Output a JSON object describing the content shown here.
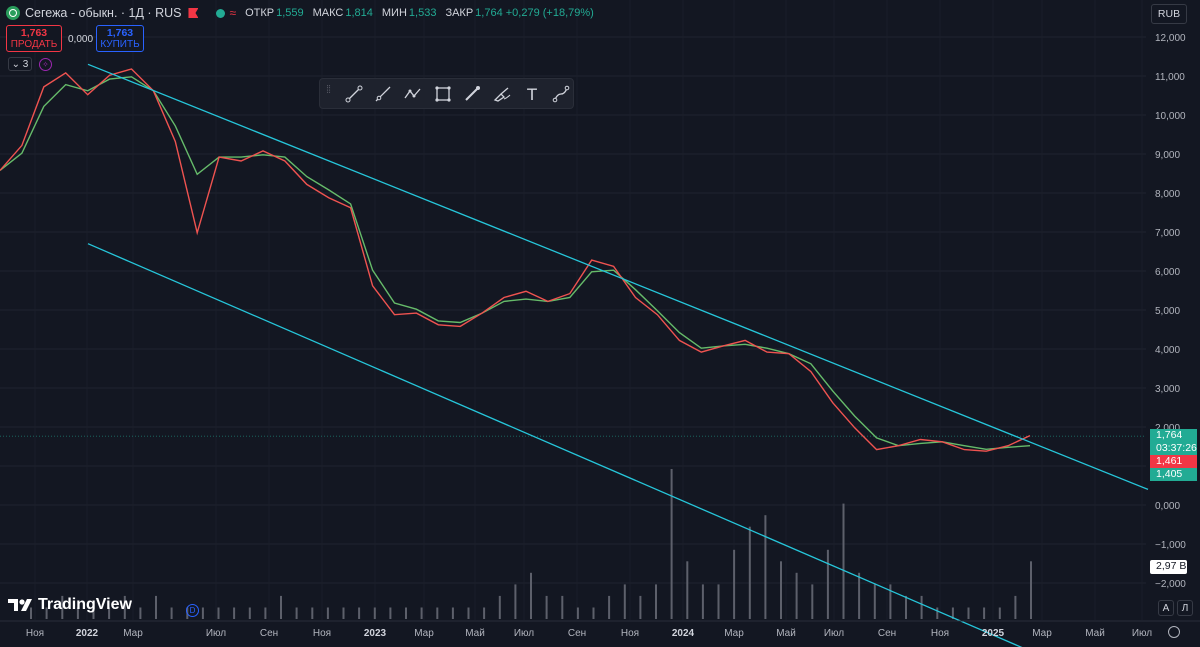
{
  "header": {
    "title": "Сегежа - обыкн. · 1Д · RUS",
    "ohlc": [
      {
        "label": "ОТКР",
        "value": "1,559"
      },
      {
        "label": "МАКС",
        "value": "1,814"
      },
      {
        "label": "МИН",
        "value": "1,533"
      },
      {
        "label": "ЗАКР",
        "value": "1,764 +0,279 (+18,79%)"
      }
    ],
    "wave_symbol": "≈"
  },
  "trade": {
    "sell_price": "1,763",
    "sell_label": "ПРОДАТЬ",
    "spread": "0,000",
    "buy_price": "1,763",
    "buy_label": "КУПИТЬ"
  },
  "indicators_toggle": "⌄ 3",
  "toolbar": {
    "tools": [
      "trend-line-icon",
      "ray-icon",
      "polyline-icon",
      "rectangle-icon",
      "brush-icon",
      "highlighter-icon",
      "text-icon",
      "path-icon"
    ],
    "text_tool_glyph": "T"
  },
  "brand": "TradingView",
  "currency": "RUB",
  "price_scale": {
    "labels": [
      "12,000",
      "11,000",
      "10,000",
      "9,000",
      "8,000",
      "7,000",
      "6,000",
      "5,000",
      "4,000",
      "3,000",
      "2,000",
      "1,000",
      "0,000",
      "−1,000",
      "−2,000"
    ],
    "values": [
      12,
      11,
      10,
      9,
      8,
      7,
      6,
      5,
      4,
      3,
      2,
      1,
      0,
      -1,
      -2
    ]
  },
  "time_axis": {
    "labels": [
      "Ноя",
      "2022",
      "Мар",
      "Июл",
      "Сен",
      "Ноя",
      "2023",
      "Мар",
      "Май",
      "Июл",
      "Сен",
      "Ноя",
      "2024",
      "Мар",
      "Май",
      "Июл",
      "Сен",
      "Ноя",
      "2025",
      "Мар",
      "Май",
      "Июл"
    ],
    "bold": [
      "2022",
      "2023",
      "2024",
      "2025"
    ]
  },
  "price_tags": {
    "last": "1,764",
    "countdown": "03:37:26",
    "red": "1,461",
    "green": "1,405",
    "volume": "2,97 B"
  },
  "axis_buttons": {
    "auto": "A",
    "log": "Л"
  },
  "markers": {
    "dividend": "D"
  },
  "chart_data": {
    "type": "line",
    "series": [
      {
        "values": [
          8.6,
          9.2,
          10.7,
          11.1,
          10.5,
          11.0,
          11.2,
          10.6,
          9.3,
          7.0,
          8.9,
          8.8,
          9.1,
          8.8,
          8.2,
          7.9,
          7.6,
          5.6,
          4.9,
          4.9,
          4.6,
          4.6,
          4.9,
          5.3,
          5.5,
          5.2,
          5.4,
          6.3,
          6.1,
          5.3,
          4.9,
          4.2,
          3.9,
          4.1,
          4.2,
          3.9,
          3.9,
          3.4,
          2.6,
          2.0,
          1.4,
          1.5,
          1.7,
          1.6,
          1.4,
          1.4,
          1.5,
          1.76
        ]
      },
      {
        "values": [
          8.6,
          9.0,
          10.2,
          10.8,
          10.6,
          10.9,
          11.0,
          10.6,
          9.7,
          8.5,
          8.9,
          8.9,
          9.0,
          8.9,
          8.4,
          8.1,
          7.7,
          6.0,
          5.2,
          5.0,
          4.7,
          4.7,
          4.9,
          5.2,
          5.3,
          5.2,
          5.3,
          6.0,
          6.0,
          5.5,
          5.0,
          4.4,
          4.0,
          4.1,
          4.1,
          4.0,
          3.9,
          3.6,
          2.9,
          2.3,
          1.7,
          1.5,
          1.6,
          1.6,
          1.5,
          1.45,
          1.46,
          1.5
        ]
      }
    ],
    "channel_upper": [
      {
        "x": "2022-01-01",
        "y": 11.3
      },
      {
        "x": "2025-07-20",
        "y": 0.4
      }
    ],
    "channel_lower": [
      {
        "x": "2022-01-01",
        "y": 6.7
      },
      {
        "x": "2025-07-20",
        "y": -4.0
      }
    ],
    "horizontal_line": 1.764,
    "volume": [
      1,
      1,
      2,
      1,
      1,
      1,
      2,
      1,
      2,
      1,
      1,
      1,
      1,
      1,
      1,
      1,
      2,
      1,
      1,
      1,
      1,
      1,
      1,
      1,
      1,
      1,
      1,
      1,
      1,
      1,
      2,
      3,
      4,
      2,
      2,
      1,
      1,
      2,
      3,
      2,
      3,
      13,
      5,
      3,
      3,
      6,
      8,
      9,
      5,
      4,
      3,
      6,
      10,
      4,
      3,
      3,
      2,
      2,
      1,
      1,
      1,
      1,
      1,
      2,
      5
    ],
    "ylim": [
      -2.6,
      12.3
    ]
  }
}
